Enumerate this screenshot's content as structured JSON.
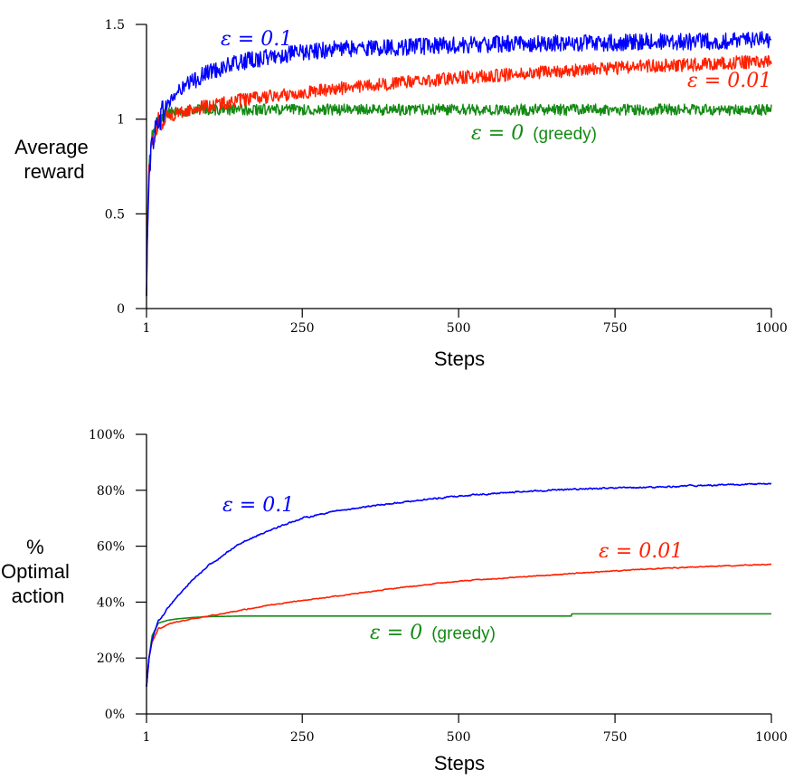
{
  "chart_data": [
    {
      "type": "line",
      "title": "",
      "ylabel": [
        "Average",
        "reward"
      ],
      "xlabel": "Steps",
      "xlim": [
        1,
        1000
      ],
      "ylim": [
        0,
        1.5
      ],
      "xticks": [
        1,
        250,
        500,
        750,
        1000
      ],
      "xtick_labels": [
        "1",
        "250",
        "500",
        "750",
        "1000"
      ],
      "yticks": [
        0,
        0.5,
        1,
        1.5
      ],
      "ytick_labels": [
        "0",
        "0.5",
        "1",
        "1.5"
      ],
      "series": [
        {
          "name": "ε = 0.1",
          "label_eps": "ε = 0.1",
          "label_suffix": "",
          "color": "#0000ff",
          "x": [
            1,
            3,
            5,
            10,
            20,
            35,
            50,
            75,
            100,
            150,
            200,
            250,
            300,
            400,
            500,
            600,
            700,
            800,
            900,
            1000
          ],
          "y": [
            0.05,
            0.5,
            0.72,
            0.88,
            1.0,
            1.08,
            1.14,
            1.2,
            1.25,
            1.3,
            1.33,
            1.35,
            1.37,
            1.38,
            1.39,
            1.4,
            1.4,
            1.41,
            1.41,
            1.42
          ],
          "noise": 0.045
        },
        {
          "name": "ε = 0.01",
          "label_eps": "ε = 0.01",
          "label_suffix": "",
          "color": "#ff2000",
          "x": [
            1,
            3,
            5,
            10,
            20,
            35,
            50,
            75,
            100,
            150,
            200,
            250,
            300,
            400,
            500,
            600,
            700,
            800,
            900,
            1000
          ],
          "y": [
            0.05,
            0.5,
            0.72,
            0.88,
            0.98,
            1.02,
            1.03,
            1.05,
            1.07,
            1.1,
            1.12,
            1.14,
            1.16,
            1.19,
            1.22,
            1.24,
            1.26,
            1.28,
            1.29,
            1.31
          ],
          "noise": 0.035
        },
        {
          "name": "ε = 0 (greedy)",
          "label_eps": "ε = 0",
          "label_suffix": "(greedy)",
          "color": "#138a13",
          "x": [
            1,
            3,
            5,
            10,
            20,
            35,
            50,
            75,
            100,
            150,
            200,
            250,
            300,
            400,
            500,
            600,
            700,
            800,
            900,
            1000
          ],
          "y": [
            0.05,
            0.5,
            0.74,
            0.9,
            1.0,
            1.03,
            1.04,
            1.05,
            1.05,
            1.05,
            1.05,
            1.05,
            1.05,
            1.05,
            1.05,
            1.05,
            1.05,
            1.05,
            1.05,
            1.05
          ],
          "noise": 0.03
        }
      ]
    },
    {
      "type": "line",
      "title": "",
      "ylabel": [
        "%",
        "Optimal",
        "action"
      ],
      "xlabel": "Steps",
      "xlim": [
        1,
        1000
      ],
      "ylim": [
        0,
        100
      ],
      "xticks": [
        1,
        250,
        500,
        750,
        1000
      ],
      "xtick_labels": [
        "1",
        "250",
        "500",
        "750",
        "1000"
      ],
      "yticks": [
        0,
        20,
        40,
        60,
        80,
        100
      ],
      "ytick_labels": [
        "0%",
        "20%",
        "40%",
        "60%",
        "80%",
        "100%"
      ],
      "series": [
        {
          "name": "ε = 0.1",
          "label_eps": "ε = 0.1",
          "label_suffix": "",
          "color": "#0000ff",
          "x": [
            1,
            5,
            10,
            20,
            35,
            50,
            75,
            100,
            150,
            200,
            250,
            300,
            400,
            500,
            600,
            700,
            800,
            900,
            1000
          ],
          "y": [
            10,
            20,
            27,
            33,
            38,
            42,
            48,
            53,
            61,
            66,
            70,
            72.5,
            75.5,
            78,
            79.5,
            80.5,
            81,
            81.8,
            82.3
          ],
          "noise": 0.5
        },
        {
          "name": "ε = 0.01",
          "label_eps": "ε = 0.01",
          "label_suffix": "",
          "color": "#ff2000",
          "x": [
            1,
            5,
            10,
            20,
            35,
            50,
            75,
            100,
            150,
            200,
            250,
            300,
            400,
            500,
            600,
            700,
            800,
            900,
            1000
          ],
          "y": [
            10,
            20,
            26,
            30.5,
            32,
            33,
            34,
            35,
            37,
            39,
            40.5,
            42,
            45,
            47.5,
            49,
            50.5,
            51.8,
            52.8,
            53.5
          ],
          "noise": 0.3
        },
        {
          "name": "ε = 0 (greedy)",
          "label_eps": "ε = 0",
          "label_suffix": "(greedy)",
          "color": "#138a13",
          "x": [
            1,
            5,
            10,
            20,
            35,
            50,
            75,
            100,
            150,
            200,
            250,
            300,
            400,
            500,
            600,
            680,
            681,
            700,
            800,
            900,
            1000
          ],
          "y": [
            10,
            20,
            28,
            32.5,
            33.5,
            34,
            34.5,
            34.8,
            35,
            35,
            35,
            35,
            35,
            35,
            35,
            35,
            35.8,
            35.8,
            35.8,
            35.8,
            35.8
          ],
          "noise": 0
        }
      ]
    }
  ]
}
